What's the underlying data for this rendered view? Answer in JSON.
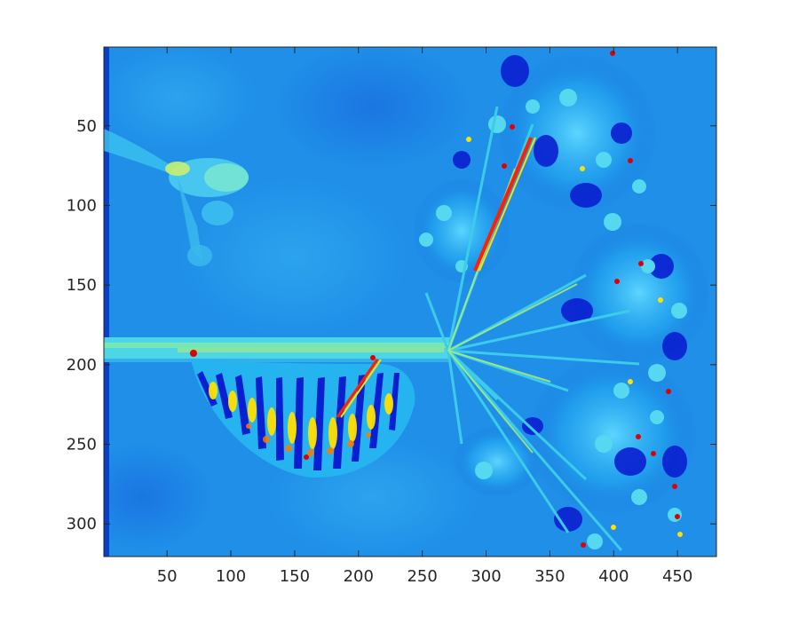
{
  "chart_data": {
    "type": "heatmap",
    "title": "",
    "xlabel": "",
    "ylabel": "",
    "colormap": "jet",
    "xlim": [
      0.5,
      480.5
    ],
    "ylim": [
      0.5,
      320.5
    ],
    "y_direction": "reverse",
    "x_ticks": [
      50,
      100,
      150,
      200,
      250,
      300,
      350,
      400,
      450
    ],
    "y_ticks": [
      50,
      100,
      150,
      200,
      250,
      300
    ],
    "x_tick_labels": [
      "50",
      "100",
      "150",
      "200",
      "250",
      "300",
      "350",
      "400",
      "450"
    ],
    "y_tick_labels": [
      "50",
      "100",
      "150",
      "200",
      "250",
      "300"
    ],
    "grid": false,
    "legend": "none",
    "colors": {
      "background": "#1f8fe8",
      "colormap_stops": [
        "#00008f",
        "#0000ff",
        "#0080ff",
        "#00ffff",
        "#80ff80",
        "#ffff00",
        "#ff8000",
        "#ff0000",
        "#800000"
      ],
      "axis": "#262626"
    },
    "image_content": "pseudocolor image of a caterpillar hanging from a plant stem with umbel flower clusters"
  }
}
